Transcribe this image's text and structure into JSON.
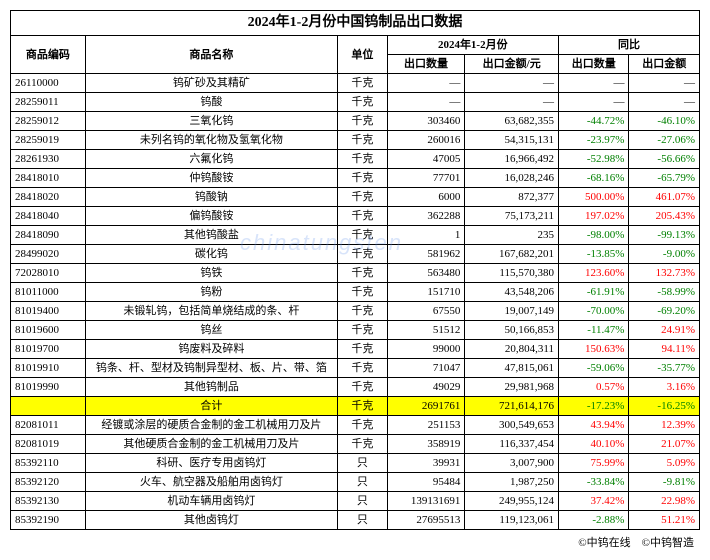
{
  "title": "2024年1-2月份中国钨制品出口数据",
  "header": {
    "code": "商品编码",
    "name": "商品名称",
    "unit": "单位",
    "period": "2024年1-2月份",
    "yoy": "同比",
    "qty": "出口数量",
    "amt": "出口金额/元",
    "yoy_qty": "出口数量",
    "yoy_amt": "出口金额"
  },
  "rows": [
    {
      "code": "26110000",
      "name": "钨矿砂及其精矿",
      "unit": "千克",
      "qty": "—",
      "amt": "—",
      "yq": "—",
      "ya": "—",
      "cq": "",
      "ca": ""
    },
    {
      "code": "28259011",
      "name": "钨酸",
      "unit": "千克",
      "qty": "—",
      "amt": "—",
      "yq": "—",
      "ya": "—",
      "cq": "",
      "ca": ""
    },
    {
      "code": "28259012",
      "name": "三氧化钨",
      "unit": "千克",
      "qty": "303460",
      "amt": "63,682,355",
      "yq": "-44.72%",
      "ya": "-46.10%",
      "cq": "green",
      "ca": "green"
    },
    {
      "code": "28259019",
      "name": "未列名钨的氧化物及氢氧化物",
      "unit": "千克",
      "qty": "260016",
      "amt": "54,315,131",
      "yq": "-23.97%",
      "ya": "-27.06%",
      "cq": "green",
      "ca": "green"
    },
    {
      "code": "28261930",
      "name": "六氟化钨",
      "unit": "千克",
      "qty": "47005",
      "amt": "16,966,492",
      "yq": "-52.98%",
      "ya": "-56.66%",
      "cq": "green",
      "ca": "green"
    },
    {
      "code": "28418010",
      "name": "仲钨酸铵",
      "unit": "千克",
      "qty": "77701",
      "amt": "16,028,246",
      "yq": "-68.16%",
      "ya": "-65.79%",
      "cq": "green",
      "ca": "green"
    },
    {
      "code": "28418020",
      "name": "钨酸钠",
      "unit": "千克",
      "qty": "6000",
      "amt": "872,377",
      "yq": "500.00%",
      "ya": "461.07%",
      "cq": "red",
      "ca": "red"
    },
    {
      "code": "28418040",
      "name": "偏钨酸铵",
      "unit": "千克",
      "qty": "362288",
      "amt": "75,173,211",
      "yq": "197.02%",
      "ya": "205.43%",
      "cq": "red",
      "ca": "red"
    },
    {
      "code": "28418090",
      "name": "其他钨酸盐",
      "unit": "千克",
      "qty": "1",
      "amt": "235",
      "yq": "-98.00%",
      "ya": "-99.13%",
      "cq": "green",
      "ca": "green"
    },
    {
      "code": "28499020",
      "name": "碳化钨",
      "unit": "千克",
      "qty": "581962",
      "amt": "167,682,201",
      "yq": "-13.85%",
      "ya": "-9.00%",
      "cq": "green",
      "ca": "green"
    },
    {
      "code": "72028010",
      "name": "钨铁",
      "unit": "千克",
      "qty": "563480",
      "amt": "115,570,380",
      "yq": "123.60%",
      "ya": "132.73%",
      "cq": "red",
      "ca": "red"
    },
    {
      "code": "81011000",
      "name": "钨粉",
      "unit": "千克",
      "qty": "151710",
      "amt": "43,548,206",
      "yq": "-61.91%",
      "ya": "-58.99%",
      "cq": "green",
      "ca": "green"
    },
    {
      "code": "81019400",
      "name": "未锻轧钨，包括简单烧结成的条、杆",
      "unit": "千克",
      "qty": "67550",
      "amt": "19,007,149",
      "yq": "-70.00%",
      "ya": "-69.20%",
      "cq": "green",
      "ca": "green"
    },
    {
      "code": "81019600",
      "name": "钨丝",
      "unit": "千克",
      "qty": "51512",
      "amt": "50,166,853",
      "yq": "-11.47%",
      "ya": "24.91%",
      "cq": "green",
      "ca": "red"
    },
    {
      "code": "81019700",
      "name": "钨废料及碎料",
      "unit": "千克",
      "qty": "99000",
      "amt": "20,804,311",
      "yq": "150.63%",
      "ya": "94.11%",
      "cq": "red",
      "ca": "red"
    },
    {
      "code": "81019910",
      "name": "钨条、杆、型材及钨制异型材、板、片、带、箔",
      "unit": "千克",
      "qty": "71047",
      "amt": "47,815,061",
      "yq": "-59.06%",
      "ya": "-35.77%",
      "cq": "green",
      "ca": "green"
    },
    {
      "code": "81019990",
      "name": "其他钨制品",
      "unit": "千克",
      "qty": "49029",
      "amt": "29,981,968",
      "yq": "0.57%",
      "ya": "3.16%",
      "cq": "red",
      "ca": "red"
    }
  ],
  "total": {
    "code": "",
    "name": "合计",
    "unit": "千克",
    "qty": "2691761",
    "amt": "721,614,176",
    "yq": "-17.23%",
    "ya": "-16.25%",
    "cq": "green",
    "ca": "green"
  },
  "rows2": [
    {
      "code": "82081011",
      "name": "经镀或涂层的硬质合金制的金工机械用刀及片",
      "unit": "千克",
      "qty": "251153",
      "amt": "300,549,653",
      "yq": "43.94%",
      "ya": "12.39%",
      "cq": "red",
      "ca": "red"
    },
    {
      "code": "82081019",
      "name": "其他硬质合金制的金工机械用刀及片",
      "unit": "千克",
      "qty": "358919",
      "amt": "116,337,454",
      "yq": "40.10%",
      "ya": "21.07%",
      "cq": "red",
      "ca": "red"
    },
    {
      "code": "85392110",
      "name": "科研、医疗专用卤钨灯",
      "unit": "只",
      "qty": "39931",
      "amt": "3,007,900",
      "yq": "75.99%",
      "ya": "5.09%",
      "cq": "red",
      "ca": "red"
    },
    {
      "code": "85392120",
      "name": "火车、航空器及船舶用卤钨灯",
      "unit": "只",
      "qty": "95484",
      "amt": "1,987,250",
      "yq": "-33.84%",
      "ya": "-9.81%",
      "cq": "green",
      "ca": "green"
    },
    {
      "code": "85392130",
      "name": "机动车辆用卤钨灯",
      "unit": "只",
      "qty": "139131691",
      "amt": "249,955,124",
      "yq": "37.42%",
      "ya": "22.98%",
      "cq": "red",
      "ca": "red"
    },
    {
      "code": "85392190",
      "name": "其他卤钨灯",
      "unit": "只",
      "qty": "27695513",
      "amt": "119,123,061",
      "yq": "-2.88%",
      "ya": "51.21%",
      "cq": "green",
      "ca": "red"
    }
  ],
  "footer": {
    "left": "©中钨在线",
    "right": "©中钨智造"
  },
  "watermark": "chinatungsten"
}
